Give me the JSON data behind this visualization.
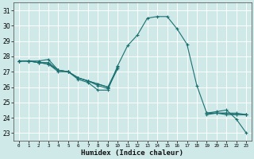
{
  "title": "",
  "xlabel": "Humidex (Indice chaleur)",
  "ylabel": "",
  "xlim": [
    -0.5,
    23.5
  ],
  "ylim": [
    22.5,
    31.5
  ],
  "yticks": [
    23,
    24,
    25,
    26,
    27,
    28,
    29,
    30,
    31
  ],
  "xticks": [
    0,
    1,
    2,
    3,
    4,
    5,
    6,
    7,
    8,
    9,
    10,
    11,
    12,
    13,
    14,
    15,
    16,
    17,
    18,
    19,
    20,
    21,
    22,
    23
  ],
  "background_color": "#cfe8e8",
  "grid_color": "#ffffff",
  "line_color": "#1a7070",
  "lines": [
    {
      "x": [
        0,
        1,
        2,
        3,
        4,
        5,
        6,
        7,
        8,
        9,
        10,
        11,
        12,
        13,
        14,
        15,
        16,
        17,
        18,
        19,
        20,
        21,
        22,
        23
      ],
      "y": [
        27.7,
        27.7,
        27.7,
        27.8,
        27.1,
        27.0,
        26.5,
        26.3,
        25.8,
        25.8,
        27.4,
        28.7,
        29.4,
        30.5,
        30.6,
        30.6,
        29.8,
        28.8,
        26.1,
        24.3,
        24.4,
        24.5,
        23.9,
        23.0
      ]
    },
    {
      "x": [
        0,
        1,
        2,
        3,
        4,
        5,
        6,
        7,
        8,
        9,
        10,
        11,
        12,
        13,
        14,
        15,
        16,
        17,
        18,
        19,
        20,
        21,
        22,
        23
      ],
      "y": [
        27.7,
        27.7,
        27.6,
        27.6,
        27.1,
        27.0,
        26.6,
        26.4,
        26.1,
        25.9,
        27.2,
        null,
        null,
        null,
        null,
        null,
        null,
        null,
        null,
        24.3,
        24.3,
        24.3,
        24.3,
        24.2
      ]
    },
    {
      "x": [
        0,
        1,
        2,
        3,
        4,
        5,
        6,
        7,
        8,
        9,
        10,
        11,
        12,
        13,
        14,
        15,
        16,
        17,
        18,
        19,
        20,
        21,
        22,
        23
      ],
      "y": [
        27.7,
        27.7,
        27.6,
        27.5,
        27.0,
        27.0,
        26.6,
        26.4,
        26.2,
        26.0,
        27.3,
        null,
        null,
        null,
        null,
        null,
        null,
        null,
        null,
        24.2,
        24.3,
        24.2,
        24.2,
        24.2
      ]
    },
    {
      "x": [
        0,
        1,
        2,
        3,
        4,
        5,
        6,
        7,
        8,
        9,
        10,
        11,
        12,
        13,
        14,
        15,
        16,
        17,
        18,
        19,
        20,
        21,
        22,
        23
      ],
      "y": [
        27.7,
        27.7,
        27.6,
        27.5,
        27.1,
        27.0,
        26.6,
        26.4,
        26.2,
        26.0,
        null,
        null,
        null,
        null,
        null,
        null,
        null,
        null,
        null,
        24.3,
        24.3,
        24.3,
        24.2,
        24.2
      ]
    }
  ]
}
